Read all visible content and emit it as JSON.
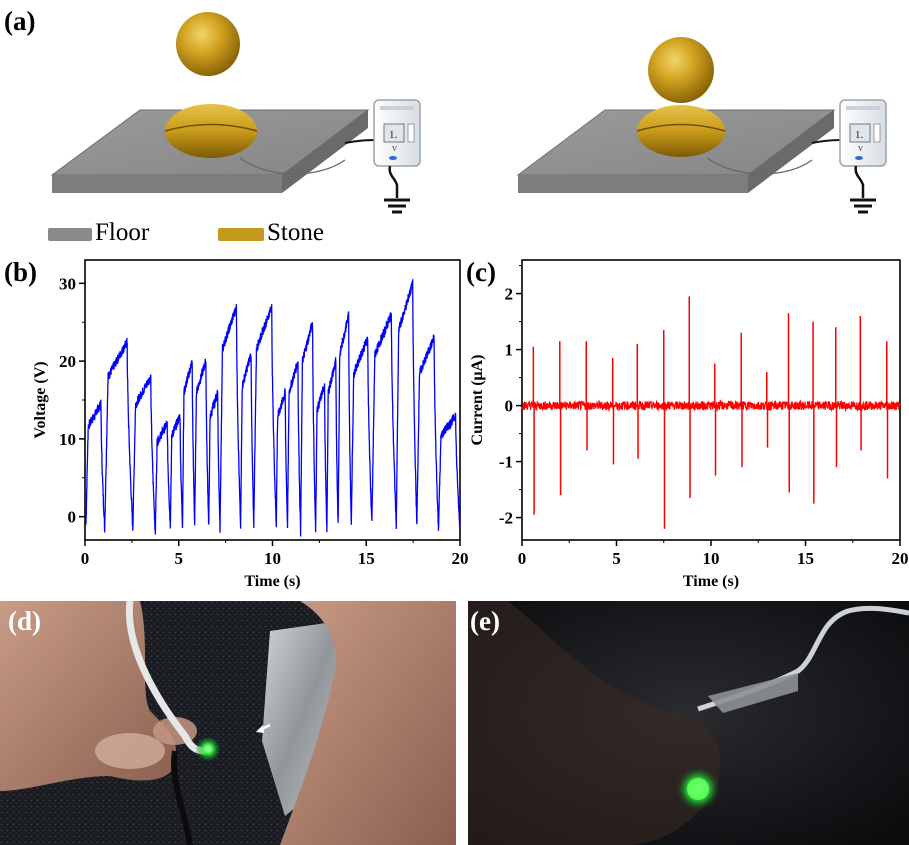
{
  "figure": {
    "panel_labels": {
      "a": "(a)",
      "b": "(b)",
      "c": "(c)",
      "d": "(d)",
      "e": "(e)"
    },
    "legend": [
      {
        "label": "Floor",
        "color": "#8a8a8a"
      },
      {
        "label": "Stone",
        "color": "#c49a1c"
      }
    ],
    "meter_glyphs": {
      "display": "1.",
      "unit": "V"
    },
    "colors": {
      "floor_top": "#909090",
      "stone": "#c9a022",
      "voltage_trace": "#0000ff",
      "current_trace": "#ff0000",
      "led_glow": "#3cff4a"
    }
  },
  "chart_data": [
    {
      "id": "b",
      "type": "line",
      "xlabel": "Time (s)",
      "ylabel": "Voltage (V)",
      "xlim": [
        0,
        20
      ],
      "ylim": [
        -3,
        33
      ],
      "x_ticks": [
        0,
        5,
        10,
        15,
        20
      ],
      "y_ticks": [
        0,
        10,
        20,
        30
      ],
      "series": [
        {
          "color": "#0000ff",
          "cycles": [
            {
              "t": 0.05,
              "base": -1,
              "peak": 14.5
            },
            {
              "t": 1.05,
              "base": -1.5,
              "peak": 22.5
            },
            {
              "t": 2.55,
              "base": -1.5,
              "peak": 18
            },
            {
              "t": 3.75,
              "base": -2,
              "peak": 12
            },
            {
              "t": 4.55,
              "base": -1,
              "peak": 13
            },
            {
              "t": 5.2,
              "base": -1,
              "peak": 20
            },
            {
              "t": 5.85,
              "base": -1,
              "peak": 20
            },
            {
              "t": 6.6,
              "base": -1,
              "peak": 16
            },
            {
              "t": 7.2,
              "base": -1.5,
              "peak": 27
            },
            {
              "t": 8.3,
              "base": -1.5,
              "peak": 21
            },
            {
              "t": 9.0,
              "base": -1,
              "peak": 27
            },
            {
              "t": 10.2,
              "base": -1,
              "peak": 16
            },
            {
              "t": 10.8,
              "base": -1,
              "peak": 20
            },
            {
              "t": 11.5,
              "base": -2,
              "peak": 25
            },
            {
              "t": 12.3,
              "base": -2,
              "peak": 17
            },
            {
              "t": 12.9,
              "base": -2,
              "peak": 20
            },
            {
              "t": 13.5,
              "base": -1,
              "peak": 26
            },
            {
              "t": 14.2,
              "base": -1,
              "peak": 23
            },
            {
              "t": 15.3,
              "base": -1,
              "peak": 26
            },
            {
              "t": 16.6,
              "base": -1,
              "peak": 30
            },
            {
              "t": 17.7,
              "base": -1,
              "peak": 23
            },
            {
              "t": 18.85,
              "base": -1.5,
              "peak": 13
            }
          ]
        }
      ]
    },
    {
      "id": "c",
      "type": "line",
      "xlabel": "Time (s)",
      "ylabel": "Current (μA)",
      "xlim": [
        0,
        20
      ],
      "ylim": [
        -2.4,
        2.6
      ],
      "x_ticks": [
        0,
        5,
        10,
        15,
        20
      ],
      "y_ticks": [
        -2,
        -1,
        0,
        1,
        2
      ],
      "series": [
        {
          "color": "#ff0000",
          "spikes": [
            {
              "t": 0.6,
              "pos": 1.05,
              "neg": -1.95
            },
            {
              "t": 2.0,
              "pos": 1.15,
              "neg": -1.6
            },
            {
              "t": 3.4,
              "pos": 1.15,
              "neg": -0.8
            },
            {
              "t": 4.8,
              "pos": 0.85,
              "neg": -1.05
            },
            {
              "t": 6.1,
              "pos": 1.1,
              "neg": -0.95
            },
            {
              "t": 7.5,
              "pos": 1.35,
              "neg": -2.2
            },
            {
              "t": 8.85,
              "pos": 1.95,
              "neg": -1.65
            },
            {
              "t": 10.2,
              "pos": 0.75,
              "neg": -1.25
            },
            {
              "t": 11.6,
              "pos": 1.3,
              "neg": -1.1
            },
            {
              "t": 12.95,
              "pos": 0.6,
              "neg": -0.75
            },
            {
              "t": 14.1,
              "pos": 1.65,
              "neg": -1.55
            },
            {
              "t": 15.4,
              "pos": 1.5,
              "neg": -1.75
            },
            {
              "t": 16.6,
              "pos": 1.4,
              "neg": -1.1
            },
            {
              "t": 17.9,
              "pos": 1.6,
              "neg": -0.8
            },
            {
              "t": 19.3,
              "pos": 1.15,
              "neg": -1.3
            }
          ]
        }
      ]
    }
  ]
}
